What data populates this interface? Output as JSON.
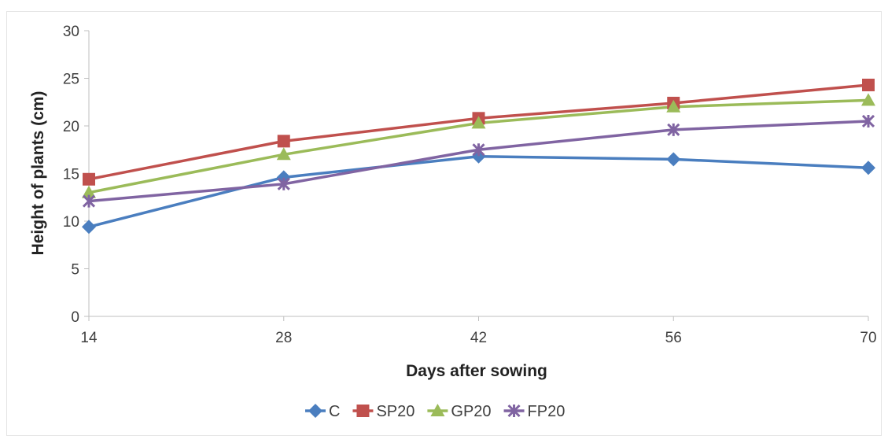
{
  "chart_data": {
    "type": "line",
    "x": [
      14,
      28,
      42,
      56,
      70
    ],
    "series": [
      {
        "name": "C",
        "values": [
          9.4,
          14.6,
          16.8,
          16.5,
          15.6
        ],
        "color": "#4a7ebf",
        "marker": "diamond"
      },
      {
        "name": "SP20",
        "values": [
          14.4,
          18.4,
          20.8,
          22.4,
          24.3
        ],
        "color": "#c0504d",
        "marker": "square"
      },
      {
        "name": "GP20",
        "values": [
          13.0,
          17.0,
          20.3,
          22.0,
          22.7
        ],
        "color": "#9bbb59",
        "marker": "triangle"
      },
      {
        "name": "FP20",
        "values": [
          12.1,
          13.9,
          17.5,
          19.6,
          20.5
        ],
        "color": "#8064a2",
        "marker": "x"
      }
    ],
    "xlabel": "Days after sowing",
    "ylabel": "Height of plants (cm)",
    "ylim": [
      0,
      30
    ],
    "yticks": [
      0,
      5,
      10,
      15,
      20,
      25,
      30
    ],
    "xticks": [
      14,
      28,
      42,
      56,
      70
    ],
    "grid": false,
    "legend": "bottom"
  }
}
